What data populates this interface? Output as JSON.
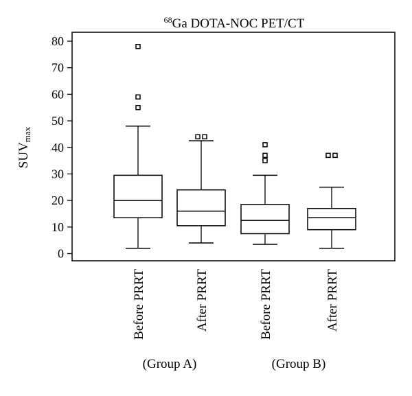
{
  "chart_data": {
    "type": "box",
    "title": {
      "sup": "68",
      "main": "Ga DOTA-NOC PET/CT"
    },
    "ylabel": {
      "main": "SUV",
      "sub": "max"
    },
    "ylim": [
      0,
      80
    ],
    "yticks": [
      0,
      10,
      20,
      30,
      40,
      50,
      60,
      70,
      80
    ],
    "groups": [
      "(Group A)",
      "(Group B)"
    ],
    "boxes": [
      {
        "label": "Before PRRT",
        "group": 0,
        "whisker_low": 2,
        "q1": 13.5,
        "median": 20,
        "q3": 29.5,
        "whisker_high": 48,
        "outliers": [
          55,
          59,
          78
        ]
      },
      {
        "label": "After PRRT",
        "group": 0,
        "whisker_low": 4,
        "q1": 10.5,
        "median": 16,
        "q3": 24,
        "whisker_high": 42.5,
        "outliers": [
          44,
          44
        ]
      },
      {
        "label": "Before PRRT",
        "group": 1,
        "whisker_low": 3.5,
        "q1": 7.5,
        "median": 12.5,
        "q3": 18.5,
        "whisker_high": 29.5,
        "outliers": [
          35,
          37,
          41
        ]
      },
      {
        "label": "After PRRT",
        "group": 1,
        "whisker_low": 2,
        "q1": 9,
        "median": 13.5,
        "q3": 17,
        "whisker_high": 25,
        "outliers": [
          37,
          37
        ]
      }
    ]
  }
}
